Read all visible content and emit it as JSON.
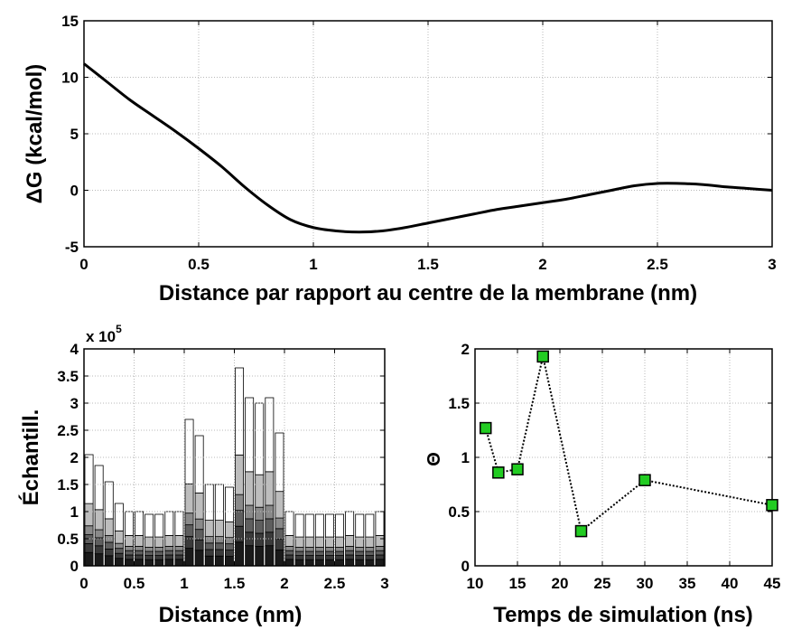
{
  "chart_data": [
    {
      "type": "line",
      "title": "",
      "xlabel": "Distance par rapport au centre de la membrane (nm)",
      "ylabel": "ΔG (kcal/mol)",
      "xlim": [
        0,
        3
      ],
      "ylim": [
        -5,
        15
      ],
      "xticks": [
        "0",
        "0.5",
        "1",
        "1.5",
        "2",
        "2.5",
        "3"
      ],
      "yticks": [
        "-5",
        "0",
        "5",
        "10",
        "15"
      ],
      "grid": true,
      "line_color": "#000000",
      "series": [
        {
          "x": [
            0,
            0.1,
            0.2,
            0.3,
            0.4,
            0.5,
            0.6,
            0.7,
            0.8,
            0.9,
            1.0,
            1.1,
            1.2,
            1.3,
            1.4,
            1.5,
            1.6,
            1.7,
            1.8,
            1.9,
            2.0,
            2.1,
            2.2,
            2.3,
            2.4,
            2.5,
            2.6,
            2.7,
            2.8,
            2.9,
            3.0
          ],
          "y": [
            11.2,
            9.6,
            8.0,
            6.6,
            5.2,
            3.7,
            2.1,
            0.3,
            -1.3,
            -2.6,
            -3.3,
            -3.6,
            -3.7,
            -3.6,
            -3.3,
            -2.9,
            -2.5,
            -2.1,
            -1.7,
            -1.4,
            -1.1,
            -0.8,
            -0.4,
            0.0,
            0.4,
            0.6,
            0.6,
            0.5,
            0.3,
            0.15,
            0.0
          ]
        }
      ]
    },
    {
      "type": "bar",
      "title": "",
      "xlabel": "Distance (nm)",
      "ylabel": "Échantill.",
      "multiplier_label": "x 10",
      "multiplier_exp": "5",
      "xlim": [
        0,
        3
      ],
      "ylim": [
        0,
        4
      ],
      "xticks": [
        "0",
        "0.5",
        "1",
        "1.5",
        "2",
        "2.5",
        "3"
      ],
      "yticks": [
        "0",
        "0.5",
        "1",
        "1.5",
        "2",
        "2.5",
        "3",
        "3.5",
        "4"
      ],
      "grid": true,
      "stacked": true,
      "layer_colors": [
        "#1a1a1a",
        "#3a3a3a",
        "#5e5e5e",
        "#8a8a8a",
        "#bdbdbd",
        "#ffffff"
      ],
      "x": [
        0.05,
        0.15,
        0.25,
        0.35,
        0.45,
        0.55,
        0.65,
        0.75,
        0.85,
        0.95,
        1.05,
        1.15,
        1.25,
        1.35,
        1.45,
        1.55,
        1.65,
        1.75,
        1.85,
        1.95,
        2.05,
        2.15,
        2.25,
        2.35,
        2.45,
        2.55,
        2.65,
        2.75,
        2.85,
        2.95
      ],
      "totals": [
        2.05,
        1.85,
        1.55,
        1.15,
        1.0,
        1.0,
        0.95,
        0.95,
        1.0,
        1.0,
        2.7,
        2.4,
        1.5,
        1.5,
        1.45,
        3.65,
        3.1,
        3.0,
        3.1,
        2.45,
        1.0,
        0.95,
        0.95,
        0.95,
        0.95,
        0.95,
        1.0,
        0.95,
        0.95,
        1.0
      ],
      "fractions": [
        0.12,
        0.08,
        0.08,
        0.08,
        0.2,
        0.44
      ]
    },
    {
      "type": "line",
      "title": "",
      "xlabel": "Temps de simulation (ns)",
      "ylabel": "Θ",
      "xlim": [
        10,
        45
      ],
      "ylim": [
        0,
        2
      ],
      "xticks": [
        "10",
        "15",
        "20",
        "25",
        "30",
        "35",
        "40",
        "45"
      ],
      "yticks": [
        "0",
        "0.5",
        "1",
        "1.5",
        "2"
      ],
      "grid": true,
      "marker": "square",
      "marker_color": "#22cc22",
      "line_style": "dotted",
      "series": [
        {
          "x": [
            11.25,
            12.75,
            15,
            18,
            22.5,
            30,
            45
          ],
          "y": [
            1.27,
            0.86,
            0.89,
            1.93,
            0.32,
            0.79,
            0.56
          ]
        }
      ]
    }
  ]
}
